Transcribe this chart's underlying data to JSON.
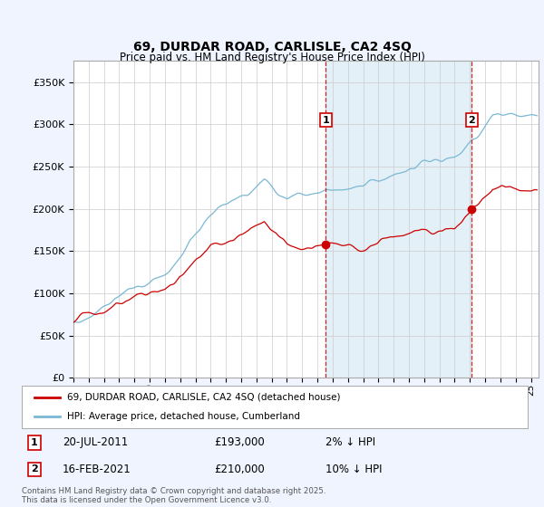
{
  "title": "69, DURDAR ROAD, CARLISLE, CA2 4SQ",
  "subtitle": "Price paid vs. HM Land Registry's House Price Index (HPI)",
  "ylabel_ticks": [
    "£0",
    "£50K",
    "£100K",
    "£150K",
    "£200K",
    "£250K",
    "£300K",
    "£350K"
  ],
  "ytick_values": [
    0,
    50000,
    100000,
    150000,
    200000,
    250000,
    300000,
    350000
  ],
  "ylim": [
    0,
    375000
  ],
  "xlim_start": 1995.0,
  "xlim_end": 2025.5,
  "hpi_color": "#7ab8d4",
  "hpi_fill_color": "#d8eaf4",
  "price_color": "#cc0000",
  "marker1_date": 2011.55,
  "marker2_date": 2021.12,
  "marker1_value": 193000,
  "marker2_value": 210000,
  "legend_house": "69, DURDAR ROAD, CARLISLE, CA2 4SQ (detached house)",
  "legend_hpi": "HPI: Average price, detached house, Cumberland",
  "annotation1_label": "1",
  "annotation1_date": "20-JUL-2011",
  "annotation1_price": "£193,000",
  "annotation1_hpi": "2% ↓ HPI",
  "annotation2_label": "2",
  "annotation2_date": "16-FEB-2021",
  "annotation2_price": "£210,000",
  "annotation2_hpi": "10% ↓ HPI",
  "footer": "Contains HM Land Registry data © Crown copyright and database right 2025.\nThis data is licensed under the Open Government Licence v3.0.",
  "background_color": "#f0f4ff",
  "plot_bg_color": "#ffffff",
  "grid_color": "#cccccc",
  "figsize": [
    6.0,
    5.6
  ],
  "dpi": 100
}
